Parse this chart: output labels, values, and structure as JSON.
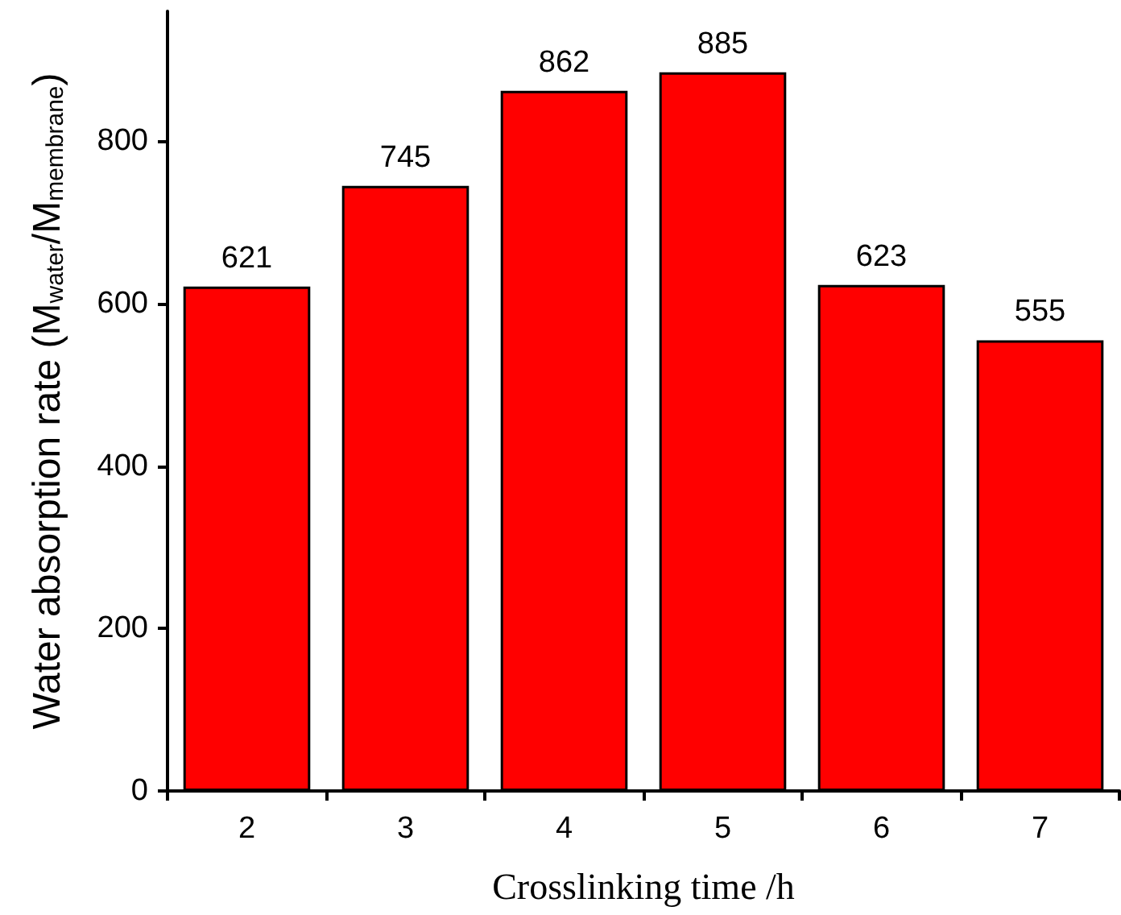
{
  "chart_data": {
    "type": "bar",
    "xlabel": "Crosslinking time /h",
    "ylabel": "Water absorption rate (M$_{water}$/M$_{membrane}$)",
    "categories": [
      "2",
      "3",
      "4",
      "5",
      "6",
      "7"
    ],
    "values": [
      621,
      745,
      862,
      885,
      623,
      555
    ],
    "color": "#ff0000",
    "data_labels": true,
    "ylim": [
      0,
      960
    ],
    "yticks": [
      0,
      200,
      400,
      600,
      800
    ],
    "grid": false
  }
}
